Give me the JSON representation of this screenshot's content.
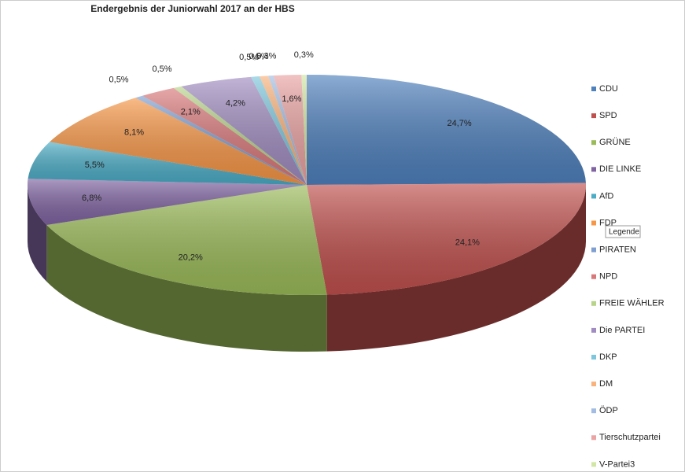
{
  "chart_data": {
    "type": "pie3d",
    "title": "Endergebnis der Juniorwahl 2017 an der HBS",
    "categories": [
      "CDU",
      "SPD",
      "GRÜNE",
      "DIE LINKE",
      "AfD",
      "FDP",
      "PIRATEN",
      "NPD",
      "FREIE WÄHLER",
      "Die PARTEI",
      "DKP",
      "DM",
      "ÖDP",
      "Tierschutzpartei",
      "V-Partei3"
    ],
    "values": [
      24.7,
      24.1,
      20.2,
      6.8,
      5.5,
      8.1,
      0.5,
      2.1,
      0.5,
      4.2,
      0.5,
      0.5,
      0.3,
      1.6,
      0.3
    ],
    "value_labels": [
      "24,7%",
      "24,1%",
      "20,2%",
      "6,8%",
      "5,5%",
      "8,1%",
      "0,5%",
      "2,1%",
      "0,5%",
      "4,2%",
      "0,5%",
      "0,5%",
      "0,3%",
      "1,6%",
      "0,3%"
    ],
    "colors": [
      "#4f81bd",
      "#c0504d",
      "#9bbb59",
      "#8064a2",
      "#4bacc6",
      "#f79646",
      "#7e9fd0",
      "#d9787a",
      "#b8d38a",
      "#a08cc0",
      "#7dc6dc",
      "#f9b27b",
      "#a3bde2",
      "#eba3a3",
      "#d3e6a6"
    ],
    "legend": "right",
    "tooltip": "Legende"
  }
}
